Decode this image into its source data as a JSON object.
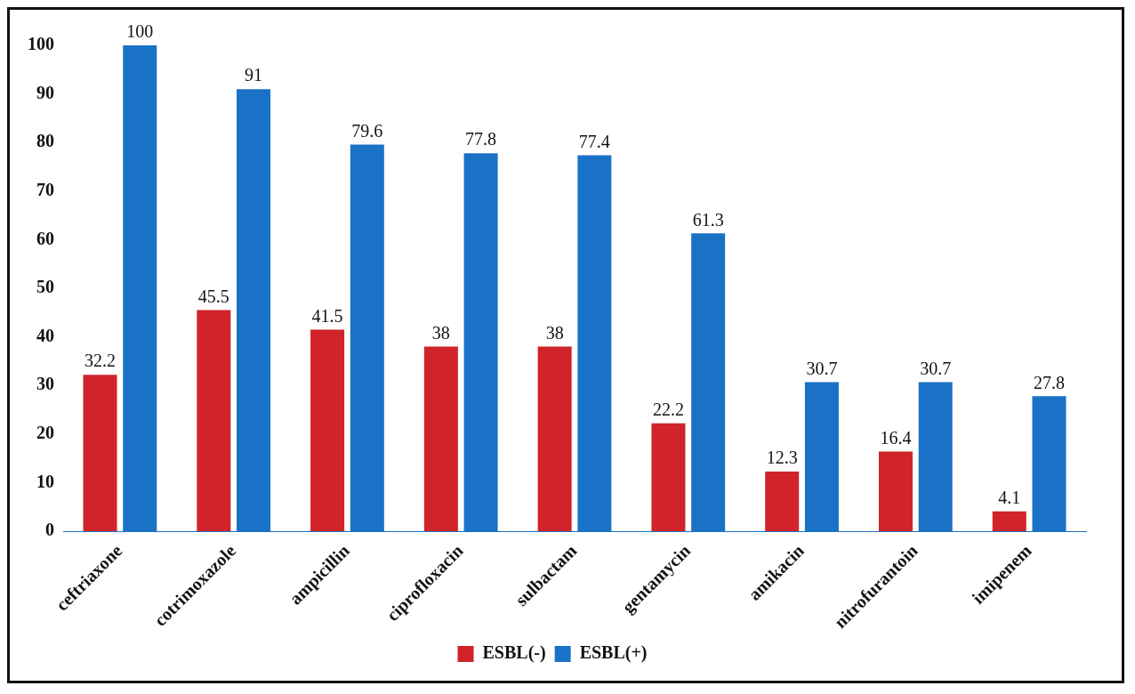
{
  "chart_data": {
    "type": "bar",
    "categories": [
      "ceftriaxone",
      "cotrimoxazole",
      "ampicillin",
      "ciprofloxacin",
      "sulbactam",
      "gentamycin",
      "amikacin",
      "nitrofurantoin",
      "imipenem"
    ],
    "series": [
      {
        "name": "ESBL(-)",
        "color": "#d0232a",
        "values": [
          32.2,
          45.5,
          41.5,
          38,
          38,
          22.2,
          12.3,
          16.4,
          4.1
        ]
      },
      {
        "name": "ESBL(+)",
        "color": "#1a72c6",
        "values": [
          100,
          91,
          79.6,
          77.8,
          77.4,
          61.3,
          30.7,
          30.7,
          27.8
        ]
      }
    ],
    "ylim": [
      0,
      100
    ],
    "yticks": [
      0,
      10,
      20,
      30,
      40,
      50,
      60,
      70,
      80,
      90,
      100
    ],
    "grid": false,
    "legend": "bottom",
    "data_labels": true
  }
}
